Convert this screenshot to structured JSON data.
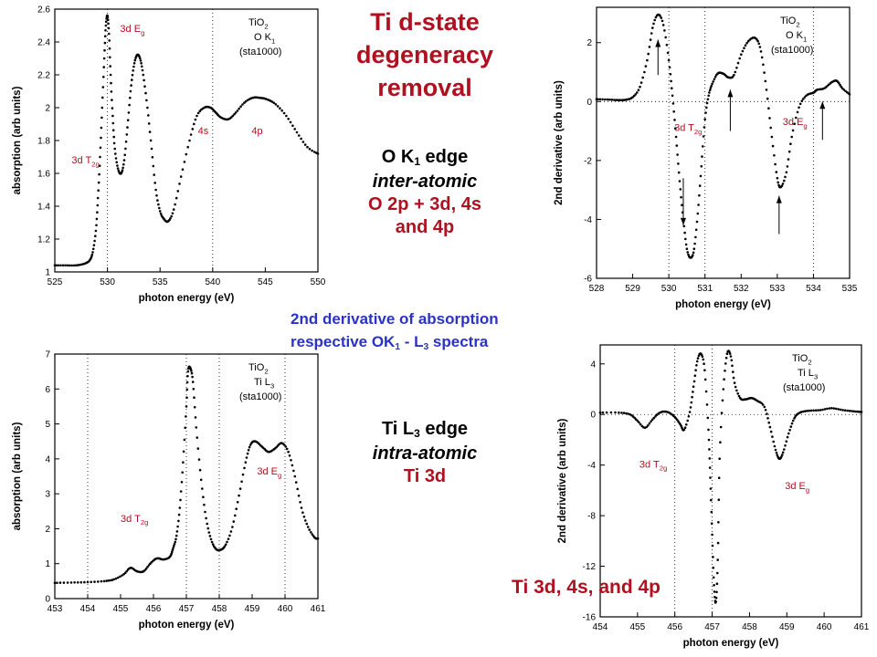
{
  "title": "Ti d-state degeneracy removal",
  "title_lines": [
    "Ti d-state",
    "degeneracy",
    "removal"
  ],
  "ok_block": {
    "l1": "O K",
    "l1_sub": "1",
    "l1_tail": " edge",
    "l2": "inter-atomic",
    "l3": "O 2p + 3d, 4s",
    "l4": "and 4p"
  },
  "tl_block": {
    "l1": "Ti L",
    "l1_sub": "3",
    "l1_tail": " edge",
    "l2": "intra-atomic",
    "l3": "Ti 3d"
  },
  "note": {
    "l1": "2nd derivative of absorption",
    "l2a": "respective OK",
    "l2s1": "1",
    "l2b": " - L",
    "l2s2": "3",
    "l2c": " spectra"
  },
  "footer": "Ti 3d, 4s, and 4p",
  "colors": {
    "red": "#b01020",
    "blue": "#2a32c8",
    "marker": "#000000"
  },
  "chart_data": [
    {
      "id": "ok-absorption",
      "type": "scatter",
      "xlabel": "photon energy (eV)",
      "ylabel": "absorption (arb units)",
      "xlim": [
        525,
        550
      ],
      "ylim": [
        1,
        2.6
      ],
      "xticks": [
        525,
        530,
        535,
        540,
        545,
        550
      ],
      "yticks": [
        1,
        1.2,
        1.4,
        1.6,
        1.8,
        2,
        2.2,
        2.4,
        2.6
      ],
      "ytick_labels": [
        "1",
        "1.2",
        "1.4",
        "1.6",
        "1.8",
        "2",
        "2.2",
        "2.4",
        "2.6"
      ],
      "vlines": [
        530,
        540
      ],
      "legend": [
        "TiO2",
        "O K1",
        "(sta1000)"
      ],
      "annotations": [
        {
          "text": "3d Eg",
          "x": 531.2,
          "y": 2.46
        },
        {
          "text": "3d T2g",
          "x": 526.6,
          "y": 1.66
        },
        {
          "text": "4s",
          "x": 538.6,
          "y": 1.84
        },
        {
          "text": "4p",
          "x": 543.7,
          "y": 1.84
        }
      ],
      "points": [
        [
          525,
          1.04
        ],
        [
          526,
          1.04
        ],
        [
          527,
          1.04
        ],
        [
          527.8,
          1.05
        ],
        [
          528.3,
          1.07
        ],
        [
          528.6,
          1.12
        ],
        [
          528.9,
          1.25
        ],
        [
          529.1,
          1.45
        ],
        [
          529.3,
          1.7
        ],
        [
          529.5,
          2.0
        ],
        [
          529.7,
          2.3
        ],
        [
          529.85,
          2.5
        ],
        [
          530.0,
          2.56
        ],
        [
          530.15,
          2.45
        ],
        [
          530.3,
          2.2
        ],
        [
          530.5,
          1.95
        ],
        [
          530.7,
          1.75
        ],
        [
          531.0,
          1.63
        ],
        [
          531.3,
          1.6
        ],
        [
          531.6,
          1.68
        ],
        [
          531.9,
          1.88
        ],
        [
          532.2,
          2.1
        ],
        [
          532.5,
          2.25
        ],
        [
          532.8,
          2.32
        ],
        [
          533.1,
          2.3
        ],
        [
          533.4,
          2.2
        ],
        [
          533.8,
          2.0
        ],
        [
          534.2,
          1.75
        ],
        [
          534.6,
          1.5
        ],
        [
          535.0,
          1.37
        ],
        [
          535.4,
          1.32
        ],
        [
          535.8,
          1.31
        ],
        [
          536.3,
          1.38
        ],
        [
          537.0,
          1.58
        ],
        [
          537.8,
          1.8
        ],
        [
          538.5,
          1.95
        ],
        [
          539.2,
          2.0
        ],
        [
          539.8,
          2.0
        ],
        [
          540.3,
          1.97
        ],
        [
          540.8,
          1.94
        ],
        [
          541.5,
          1.93
        ],
        [
          542.2,
          1.97
        ],
        [
          543.0,
          2.03
        ],
        [
          543.8,
          2.06
        ],
        [
          544.5,
          2.06
        ],
        [
          545.2,
          2.05
        ],
        [
          546.0,
          2.02
        ],
        [
          547.0,
          1.95
        ],
        [
          548.0,
          1.85
        ],
        [
          549.0,
          1.76
        ],
        [
          550.0,
          1.72
        ]
      ]
    },
    {
      "id": "ok-derivative",
      "type": "scatter",
      "xlabel": "photon energy (eV)",
      "ylabel": "2nd derivative (arb units)",
      "xlim": [
        528,
        535
      ],
      "ylim": [
        -6,
        3.2
      ],
      "xticks": [
        528,
        529,
        530,
        531,
        532,
        533,
        534,
        535
      ],
      "yticks": [
        -6,
        -4,
        -2,
        0,
        2
      ],
      "ytick_labels": [
        "-6",
        "-4",
        "-2",
        "0",
        "2"
      ],
      "vlines": [
        530,
        531,
        534
      ],
      "legend": [
        "TiO2",
        "O K1",
        "(sta1000)"
      ],
      "annotations": [
        {
          "text": "3d T2g",
          "x": 530.15,
          "y": -1.0
        },
        {
          "text": "3d Eg",
          "x": 533.15,
          "y": -0.8
        }
      ],
      "arrows": [
        {
          "x": 529.7,
          "from": 0.9,
          "to": 2.1
        },
        {
          "x": 530.4,
          "from": -2.6,
          "to": -4.2
        },
        {
          "x": 531.7,
          "from": -1.0,
          "to": 0.4
        },
        {
          "x": 533.05,
          "from": -4.5,
          "to": -3.2
        },
        {
          "x": 534.25,
          "from": -1.3,
          "to": 0.0
        }
      ],
      "points": [
        [
          528.0,
          0.08
        ],
        [
          528.3,
          0.07
        ],
        [
          528.6,
          0.05
        ],
        [
          528.8,
          0.06
        ],
        [
          529.0,
          0.15
        ],
        [
          529.2,
          0.5
        ],
        [
          529.4,
          1.4
        ],
        [
          529.55,
          2.5
        ],
        [
          529.7,
          2.95
        ],
        [
          529.85,
          2.6
        ],
        [
          530.0,
          1.4
        ],
        [
          530.1,
          0.2
        ],
        [
          530.2,
          -1.2
        ],
        [
          530.3,
          -2.7
        ],
        [
          530.4,
          -4.0
        ],
        [
          530.5,
          -5.0
        ],
        [
          530.6,
          -5.3
        ],
        [
          530.7,
          -5.0
        ],
        [
          530.8,
          -3.8
        ],
        [
          530.9,
          -2.2
        ],
        [
          531.0,
          -0.6
        ],
        [
          531.1,
          0.2
        ],
        [
          531.2,
          0.6
        ],
        [
          531.35,
          0.95
        ],
        [
          531.5,
          0.95
        ],
        [
          531.65,
          0.82
        ],
        [
          531.8,
          0.9
        ],
        [
          532.0,
          1.6
        ],
        [
          532.2,
          2.05
        ],
        [
          532.4,
          2.15
        ],
        [
          532.55,
          1.7
        ],
        [
          532.7,
          0.4
        ],
        [
          532.85,
          -1.2
        ],
        [
          533.0,
          -2.6
        ],
        [
          533.1,
          -2.9
        ],
        [
          533.25,
          -2.4
        ],
        [
          533.4,
          -1.2
        ],
        [
          533.6,
          -0.2
        ],
        [
          533.8,
          0.2
        ],
        [
          534.0,
          0.3
        ],
        [
          534.1,
          0.4
        ],
        [
          534.3,
          0.45
        ],
        [
          534.5,
          0.65
        ],
        [
          534.65,
          0.7
        ],
        [
          534.8,
          0.45
        ],
        [
          535.0,
          0.25
        ]
      ]
    },
    {
      "id": "tl-absorption",
      "type": "scatter",
      "xlabel": "photon energy (eV)",
      "ylabel": "absorption (arb units)",
      "xlim": [
        453,
        461
      ],
      "ylim": [
        0,
        7
      ],
      "xticks": [
        453,
        454,
        455,
        456,
        457,
        458,
        459,
        460,
        461
      ],
      "yticks": [
        0,
        1,
        2,
        3,
        4,
        5,
        6,
        7
      ],
      "ytick_labels": [
        "0",
        "1",
        "2",
        "3",
        "4",
        "5",
        "6",
        "7"
      ],
      "vlines": [
        454,
        457,
        458,
        460
      ],
      "legend": [
        "TiO2",
        "Ti L3",
        "(sta1000)"
      ],
      "annotations": [
        {
          "text": "3d T2g",
          "x": 455.0,
          "y": 2.2
        },
        {
          "text": "3d Eg",
          "x": 459.15,
          "y": 3.55
        }
      ],
      "points": [
        [
          453.0,
          0.45
        ],
        [
          453.5,
          0.46
        ],
        [
          454.0,
          0.47
        ],
        [
          454.5,
          0.5
        ],
        [
          454.8,
          0.55
        ],
        [
          455.1,
          0.7
        ],
        [
          455.3,
          0.88
        ],
        [
          455.5,
          0.78
        ],
        [
          455.7,
          0.78
        ],
        [
          455.9,
          1.0
        ],
        [
          456.1,
          1.15
        ],
        [
          456.3,
          1.12
        ],
        [
          456.5,
          1.2
        ],
        [
          456.6,
          1.45
        ],
        [
          456.7,
          1.8
        ],
        [
          456.8,
          2.6
        ],
        [
          456.9,
          3.9
        ],
        [
          457.0,
          5.5
        ],
        [
          457.05,
          6.5
        ],
        [
          457.12,
          6.6
        ],
        [
          457.2,
          6.2
        ],
        [
          457.3,
          4.9
        ],
        [
          457.45,
          3.4
        ],
        [
          457.6,
          2.3
        ],
        [
          457.75,
          1.7
        ],
        [
          457.9,
          1.42
        ],
        [
          458.05,
          1.4
        ],
        [
          458.2,
          1.55
        ],
        [
          458.4,
          2.05
        ],
        [
          458.6,
          2.95
        ],
        [
          458.8,
          3.9
        ],
        [
          458.95,
          4.4
        ],
        [
          459.1,
          4.5
        ],
        [
          459.3,
          4.35
        ],
        [
          459.5,
          4.2
        ],
        [
          459.7,
          4.3
        ],
        [
          459.9,
          4.45
        ],
        [
          460.1,
          4.2
        ],
        [
          460.3,
          3.5
        ],
        [
          460.5,
          2.6
        ],
        [
          460.7,
          2.05
        ],
        [
          460.9,
          1.75
        ],
        [
          461.0,
          1.72
        ]
      ]
    },
    {
      "id": "tl-derivative",
      "type": "scatter",
      "xlabel": "photon energy (eV)",
      "ylabel": "2nd derivative (arb units)",
      "xlim": [
        454,
        461
      ],
      "ylim": [
        -16,
        5.5
      ],
      "xticks": [
        454,
        455,
        456,
        457,
        458,
        459,
        460,
        461
      ],
      "yticks": [
        -16,
        -12,
        -8,
        -4,
        0,
        4
      ],
      "ytick_labels": [
        "-16",
        "-12",
        "-8",
        "-4",
        "0",
        "4"
      ],
      "vlines": [
        456,
        457
      ],
      "legend": [
        "TiO2",
        "Ti L3",
        "(sta1000)"
      ],
      "annotations": [
        {
          "text": "3d T2g",
          "x": 455.05,
          "y": -4.2
        },
        {
          "text": "3d Eg",
          "x": 458.95,
          "y": -5.9
        }
      ],
      "points": [
        [
          454.0,
          0.15
        ],
        [
          454.5,
          0.15
        ],
        [
          454.8,
          0.0
        ],
        [
          455.0,
          -0.5
        ],
        [
          455.2,
          -1.05
        ],
        [
          455.4,
          -0.4
        ],
        [
          455.6,
          0.15
        ],
        [
          455.8,
          0.2
        ],
        [
          456.0,
          -0.2
        ],
        [
          456.15,
          -0.8
        ],
        [
          456.25,
          -1.2
        ],
        [
          456.4,
          0.2
        ],
        [
          456.5,
          2.2
        ],
        [
          456.6,
          4.2
        ],
        [
          456.7,
          4.8
        ],
        [
          456.8,
          3.5
        ],
        [
          456.9,
          -1.2
        ],
        [
          456.95,
          -5.0
        ],
        [
          457.0,
          -9.5
        ],
        [
          457.05,
          -13.5
        ],
        [
          457.1,
          -14.8
        ],
        [
          457.15,
          -11.5
        ],
        [
          457.2,
          -3.5
        ],
        [
          457.3,
          2.0
        ],
        [
          457.4,
          4.8
        ],
        [
          457.5,
          4.6
        ],
        [
          457.6,
          2.5
        ],
        [
          457.75,
          1.3
        ],
        [
          457.9,
          1.2
        ],
        [
          458.05,
          1.3
        ],
        [
          458.2,
          1.1
        ],
        [
          458.4,
          0.6
        ],
        [
          458.55,
          -1.0
        ],
        [
          458.7,
          -2.8
        ],
        [
          458.8,
          -3.5
        ],
        [
          458.9,
          -3.0
        ],
        [
          459.05,
          -1.5
        ],
        [
          459.2,
          -0.3
        ],
        [
          459.35,
          0.15
        ],
        [
          459.6,
          0.3
        ],
        [
          459.9,
          0.35
        ],
        [
          460.2,
          0.5
        ],
        [
          460.5,
          0.35
        ],
        [
          460.8,
          0.25
        ],
        [
          461.0,
          0.2
        ]
      ]
    }
  ]
}
